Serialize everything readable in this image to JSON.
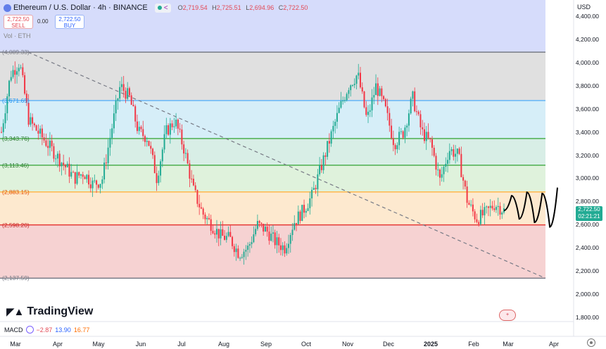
{
  "header": {
    "title": "Ethereum / U.S. Dollar · 4h · BINANCE",
    "ohlc": {
      "o_label": "O",
      "o": "2,719.54",
      "h_label": "H",
      "h": "2,725.51",
      "l_label": "L",
      "l": "2,694.96",
      "c_label": "C",
      "c": "2,722.50"
    }
  },
  "trade": {
    "sell_price": "2,722.50",
    "sell_label": "SELL",
    "spread": "0.00",
    "buy_price": "2,722.50",
    "buy_label": "BUY"
  },
  "volume_label": "Vol · ETH",
  "currency": "USD",
  "price_tag": {
    "price": "2,722.50",
    "countdown": "02:21:21",
    "color": "#22ab94"
  },
  "brand": "TradingView",
  "indicator": {
    "name": "MACD",
    "v1": "−2.87",
    "v2": "13.90",
    "v3": "16.77"
  },
  "emoji_badge": "+",
  "colors": {
    "up": "#22ab94",
    "down": "#f23645",
    "trend": "#787b86"
  },
  "chart_data": {
    "type": "candlestick",
    "symbol": "ETHUSD",
    "ylim": [
      1800,
      4500
    ],
    "y_ticks": [
      "4,400.00",
      "4,200.00",
      "4,000.00",
      "3,800.00",
      "3,600.00",
      "3,400.00",
      "3,200.00",
      "3,000.00",
      "2,800.00",
      "2,600.00",
      "2,400.00",
      "2,200.00",
      "2,000.00",
      "1,800.00"
    ],
    "x_ticks": [
      "Mar",
      "Apr",
      "May",
      "Jun",
      "Jul",
      "Aug",
      "Sep",
      "Oct",
      "Nov",
      "Dec",
      "2025",
      "Feb",
      "Mar",
      "Apr"
    ],
    "fib_levels": [
      {
        "label": "(4,089.33)",
        "value": 4089.33,
        "line": "#787b86",
        "fill": "#e0e0e0",
        "text": "#787b86"
      },
      {
        "label": "(3,671.65)",
        "value": 3671.65,
        "line": "#64b5f6",
        "fill": "#d6eef8",
        "text": "#2196f3"
      },
      {
        "label": "(3,343.76)",
        "value": 3343.76,
        "line": "#4caf50",
        "fill": "#d8eee6",
        "text": "#2e7d32"
      },
      {
        "label": "(3,113.46)",
        "value": 3113.46,
        "line": "#4caf50",
        "fill": "#dff2dc",
        "text": "#2e7d32"
      },
      {
        "label": "(2,883.15)",
        "value": 2883.15,
        "line": "#ffb74d",
        "fill": "#fde9cf",
        "text": "#e65100"
      },
      {
        "label": "(2,598.20)",
        "value": 2598.2,
        "line": "#e53935",
        "fill": "#f6d2d2",
        "text": "#c62828"
      },
      {
        "label": "(2,137.59)",
        "value": 2137.59,
        "line": "#787b86",
        "fill": "#f6d2d2",
        "text": "#787b86"
      }
    ],
    "top_zone": {
      "from": 4089.33,
      "to": 4500,
      "fill": "#d6dcfb"
    },
    "price_series": [
      3400,
      3900,
      4000,
      3500,
      3400,
      3300,
      3200,
      3100,
      3000,
      3050,
      2950,
      2980,
      3400,
      3800,
      3700,
      3400,
      3350,
      3000,
      3400,
      3500,
      3250,
      2900,
      2700,
      2600,
      2500,
      2480,
      2350,
      2400,
      2600,
      2550,
      2450,
      2400,
      2620,
      2720,
      2850,
      3100,
      3350,
      3600,
      3800,
      3900,
      3500,
      3800,
      3600,
      3300,
      3400,
      3700,
      3400,
      3300,
      2980,
      3250,
      3200,
      2800,
      2650,
      2700,
      2780,
      2722.5
    ],
    "projection": [
      2722.5,
      2850,
      2650,
      2880,
      2620,
      2870,
      2580,
      2920
    ],
    "last_price": 2722.5
  }
}
